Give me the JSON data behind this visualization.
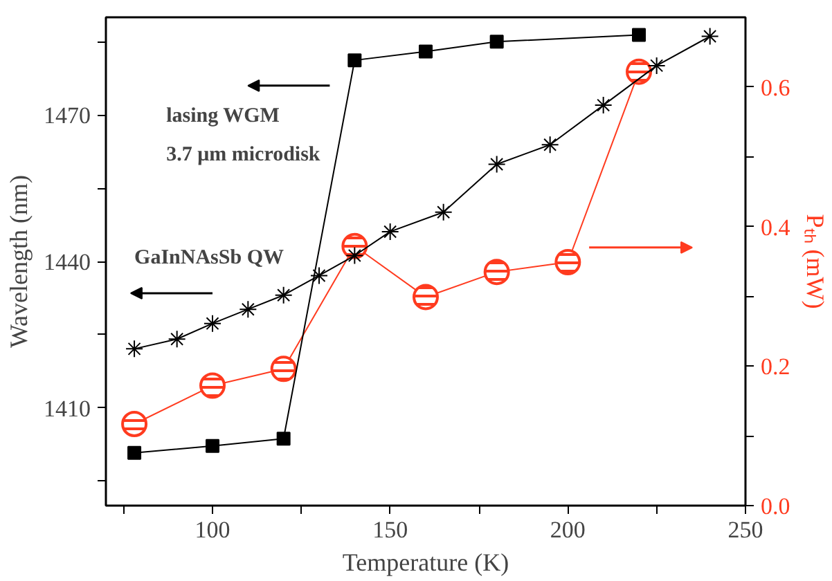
{
  "chart_data": {
    "type": "line",
    "xlabel": "Temperature (K)",
    "ylabel": "Wavelength (nm)",
    "y2label": "Pₜₕ (mW)",
    "xlim": [
      70,
      250
    ],
    "ylim": [
      1390,
      1490
    ],
    "y2lim": [
      0,
      0.7
    ],
    "xticks": [
      {
        "value": 75,
        "label": null
      },
      100,
      {
        "value": 125,
        "label": null
      },
      150,
      {
        "value": 175,
        "label": null
      },
      200,
      {
        "value": 225,
        "label": null
      },
      250
    ],
    "yticks": [
      {
        "value": 1395,
        "label": null
      },
      1410,
      {
        "value": 1425,
        "label": null
      },
      1440,
      {
        "value": 1455,
        "label": null
      },
      1470,
      {
        "value": 1485,
        "label": null
      }
    ],
    "y2ticks": [
      {
        "value": 0,
        "label": "0.0"
      },
      {
        "value": 0.1,
        "label": null
      },
      0.2,
      {
        "value": 0.3,
        "label": null
      },
      0.4,
      {
        "value": 0.5,
        "label": null
      },
      0.6
    ],
    "grid": false,
    "series": [
      {
        "color": "#000000",
        "marker": "square",
        "x": [
          78,
          100,
          120,
          140,
          160,
          180,
          220
        ],
        "values": [
          1400.8,
          1402.2,
          1403.7,
          1481.2,
          1483,
          1485,
          1486.4
        ]
      },
      {
        "color": "#000000",
        "marker": "cross",
        "x": [
          78,
          90,
          100,
          110,
          120,
          130,
          140,
          150,
          165,
          180,
          195,
          210,
          225,
          240
        ],
        "values": [
          1422.1,
          1424.1,
          1427.3,
          1430.2,
          1433.1,
          1437.1,
          1441.2,
          1446.1,
          1450.1,
          1459.9,
          1463.9,
          1472.0,
          1480.1,
          1486.1
        ]
      },
      {
        "color": "#ff3b1f",
        "marker": "circle",
        "axis": "y2",
        "x": [
          78,
          100,
          120,
          140,
          160,
          180,
          200,
          220
        ],
        "values": [
          0.117,
          0.172,
          0.196,
          0.372,
          0.299,
          0.335,
          0.349,
          0.622
        ]
      }
    ],
    "annotations": [
      "lasing WGM",
      "3.7 μm microdisk",
      "GaInNAsSb QW"
    ]
  }
}
